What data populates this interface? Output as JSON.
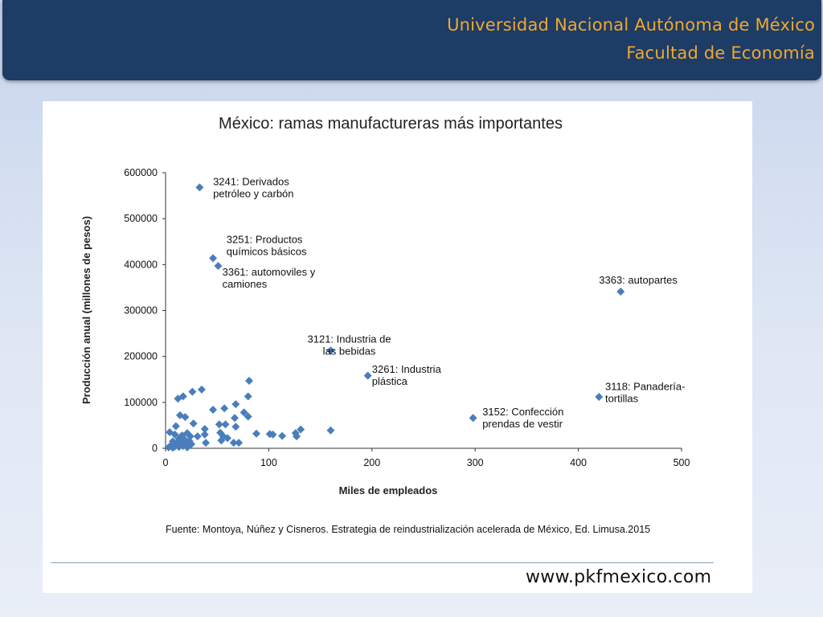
{
  "header": {
    "line1": "Universidad Nacional Autónoma de México",
    "line2": "Facultad de Economía"
  },
  "chart_data": {
    "type": "scatter",
    "title": "México: ramas manufactureras más importantes",
    "xlabel": "Miles de empleados",
    "ylabel": "Producción anual  (millones de pesos)",
    "xlim": [
      0,
      500
    ],
    "ylim": [
      0,
      600000
    ],
    "xticks": [
      0,
      100,
      200,
      300,
      400,
      500
    ],
    "yticks": [
      0,
      100000,
      200000,
      300000,
      400000,
      500000,
      600000
    ],
    "grid": false,
    "legend": false,
    "marker_color": "#4a7ebb",
    "points": [
      {
        "x": 33,
        "y": 568000
      },
      {
        "x": 46,
        "y": 414000
      },
      {
        "x": 51,
        "y": 397000
      },
      {
        "x": 441,
        "y": 341000
      },
      {
        "x": 160,
        "y": 213000
      },
      {
        "x": 196,
        "y": 158000
      },
      {
        "x": 420,
        "y": 112000
      },
      {
        "x": 298,
        "y": 66000
      },
      {
        "x": 81,
        "y": 147000
      },
      {
        "x": 35,
        "y": 128000
      },
      {
        "x": 26,
        "y": 123000
      },
      {
        "x": 17,
        "y": 113000
      },
      {
        "x": 12,
        "y": 108000
      },
      {
        "x": 80,
        "y": 113000
      },
      {
        "x": 68,
        "y": 96000
      },
      {
        "x": 57,
        "y": 87000
      },
      {
        "x": 46,
        "y": 84000
      },
      {
        "x": 76,
        "y": 78000
      },
      {
        "x": 80,
        "y": 69000
      },
      {
        "x": 67,
        "y": 66000
      },
      {
        "x": 14,
        "y": 72000
      },
      {
        "x": 19,
        "y": 68000
      },
      {
        "x": 27,
        "y": 54000
      },
      {
        "x": 52,
        "y": 52000
      },
      {
        "x": 58,
        "y": 52000
      },
      {
        "x": 10,
        "y": 48000
      },
      {
        "x": 68,
        "y": 47000
      },
      {
        "x": 38,
        "y": 42000
      },
      {
        "x": 131,
        "y": 41000
      },
      {
        "x": 160,
        "y": 39000
      },
      {
        "x": 126,
        "y": 33000
      },
      {
        "x": 88,
        "y": 32000
      },
      {
        "x": 101,
        "y": 31000
      },
      {
        "x": 104,
        "y": 30000
      },
      {
        "x": 113,
        "y": 27000
      },
      {
        "x": 127,
        "y": 26000
      },
      {
        "x": 31,
        "y": 26000
      },
      {
        "x": 38,
        "y": 30000
      },
      {
        "x": 53,
        "y": 34000
      },
      {
        "x": 56,
        "y": 26000
      },
      {
        "x": 60,
        "y": 22000
      },
      {
        "x": 54,
        "y": 17000
      },
      {
        "x": 66,
        "y": 12000
      },
      {
        "x": 71,
        "y": 12000
      },
      {
        "x": 39,
        "y": 12000
      },
      {
        "x": 4,
        "y": 35000
      },
      {
        "x": 9,
        "y": 30000
      },
      {
        "x": 16,
        "y": 28000
      },
      {
        "x": 21,
        "y": 33000
      },
      {
        "x": 24,
        "y": 26000
      },
      {
        "x": 13,
        "y": 21000
      },
      {
        "x": 19,
        "y": 18000
      },
      {
        "x": 23,
        "y": 16000
      },
      {
        "x": 7,
        "y": 15000
      },
      {
        "x": 11,
        "y": 12000
      },
      {
        "x": 15,
        "y": 10000
      },
      {
        "x": 20,
        "y": 8000
      },
      {
        "x": 25,
        "y": 9000
      },
      {
        "x": 5,
        "y": 6000
      },
      {
        "x": 9,
        "y": 4000
      },
      {
        "x": 13,
        "y": 3000
      },
      {
        "x": 17,
        "y": 5000
      },
      {
        "x": 3,
        "y": 2000
      },
      {
        "x": 7,
        "y": 1000
      },
      {
        "x": 21,
        "y": 2000
      }
    ],
    "annotations": [
      {
        "lines": [
          "3241: Derivados",
          "petróleo y carbón"
        ],
        "x": 46,
        "y": 573000,
        "align": "start"
      },
      {
        "lines": [
          "3251: Productos",
          "químicos básicos"
        ],
        "x": 59,
        "y": 447000,
        "align": "start"
      },
      {
        "lines": [
          "3361: automoviles y",
          "camiones"
        ],
        "x": 55,
        "y": 376000,
        "align": "start"
      },
      {
        "lines": [
          "3363: autopartes"
        ],
        "x": 420,
        "y": 359000,
        "align": "start"
      },
      {
        "lines": [
          "3121: Industria de",
          "las bebidas"
        ],
        "x": 178,
        "y": 230000,
        "align": "middle"
      },
      {
        "lines": [
          "3261: Industria",
          "plástica"
        ],
        "x": 200,
        "y": 164000,
        "align": "start"
      },
      {
        "lines": [
          "3118: Panadería-",
          "tortillas"
        ],
        "x": 426,
        "y": 127000,
        "align": "start"
      },
      {
        "lines": [
          "3152: Confección",
          "prendas de vestir"
        ],
        "x": 307,
        "y": 72000,
        "align": "start"
      }
    ]
  },
  "source": {
    "text": "Fuente: Montoya, Núñez y Cisneros. Estrategia de reindustrialización acelerada de México, Ed. Limusa.2015"
  },
  "footer": {
    "url": "www.pkfmexico.com"
  }
}
